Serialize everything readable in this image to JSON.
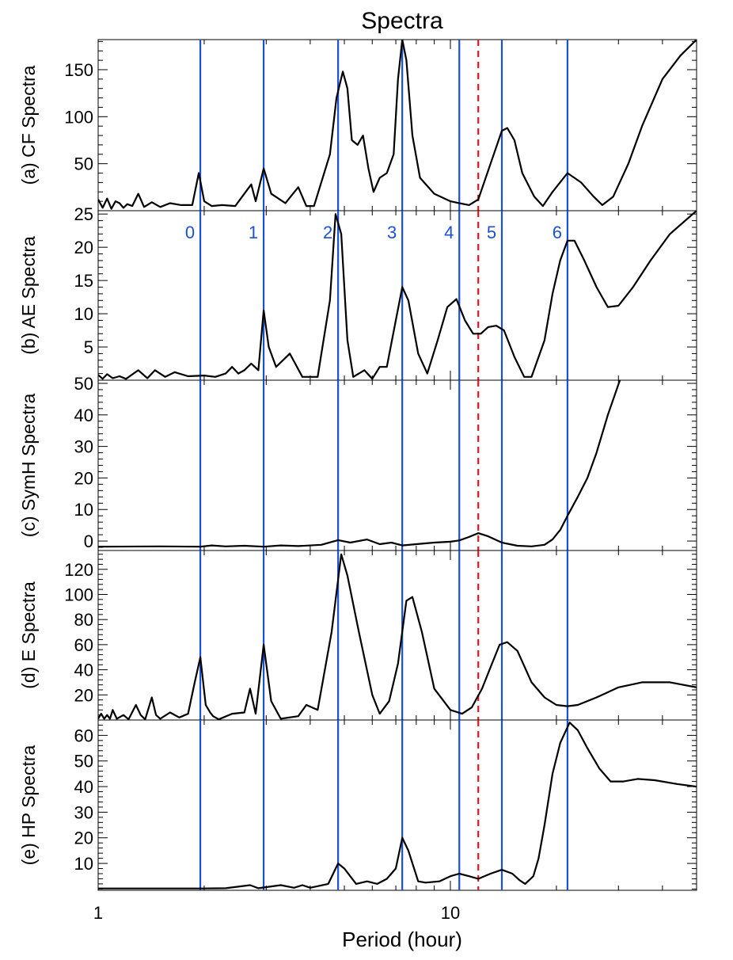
{
  "title": "Spectra",
  "xlabel": "Period (hour)",
  "vline_color": "#1a4fd8",
  "dashed_color": "#e8141e",
  "chart_data": {
    "type": "line",
    "x_scale": "log",
    "xlim": [
      1,
      50
    ],
    "x_ticks": [
      {
        "value": 1,
        "label": "1"
      },
      {
        "value": 10,
        "label": "10"
      }
    ],
    "vertical_lines": [
      {
        "period": 1.95,
        "label": "0"
      },
      {
        "period": 2.95,
        "label": "1"
      },
      {
        "period": 4.8,
        "label": "2"
      },
      {
        "period": 7.3,
        "label": "3"
      },
      {
        "period": 10.6,
        "label": "4"
      },
      {
        "period": 14.0,
        "label": "5"
      },
      {
        "period": 21.5,
        "label": "6"
      }
    ],
    "dashed_line": {
      "period": 12.0
    },
    "panels": [
      {
        "ylabel": "(a) CF Spectra",
        "ylim": [
          0,
          182
        ],
        "yticks": [
          50,
          100,
          150
        ],
        "points": [
          [
            1.0,
            12
          ],
          [
            1.03,
            3
          ],
          [
            1.06,
            13
          ],
          [
            1.09,
            2
          ],
          [
            1.12,
            10
          ],
          [
            1.15,
            8
          ],
          [
            1.18,
            3
          ],
          [
            1.21,
            7
          ],
          [
            1.25,
            5
          ],
          [
            1.3,
            18
          ],
          [
            1.35,
            4
          ],
          [
            1.42,
            9
          ],
          [
            1.5,
            4
          ],
          [
            1.6,
            8
          ],
          [
            1.72,
            6
          ],
          [
            1.85,
            6
          ],
          [
            1.93,
            40
          ],
          [
            2.0,
            10
          ],
          [
            2.1,
            5
          ],
          [
            2.25,
            6
          ],
          [
            2.45,
            5
          ],
          [
            2.72,
            28
          ],
          [
            2.8,
            10
          ],
          [
            2.95,
            45
          ],
          [
            3.1,
            18
          ],
          [
            3.4,
            8
          ],
          [
            3.7,
            25
          ],
          [
            3.9,
            5
          ],
          [
            4.1,
            5
          ],
          [
            4.55,
            60
          ],
          [
            4.75,
            120
          ],
          [
            4.95,
            148
          ],
          [
            5.1,
            130
          ],
          [
            5.25,
            75
          ],
          [
            5.45,
            70
          ],
          [
            5.65,
            80
          ],
          [
            5.85,
            45
          ],
          [
            6.05,
            20
          ],
          [
            6.3,
            35
          ],
          [
            6.6,
            40
          ],
          [
            6.9,
            60
          ],
          [
            7.1,
            140
          ],
          [
            7.3,
            182
          ],
          [
            7.5,
            160
          ],
          [
            7.8,
            80
          ],
          [
            8.2,
            35
          ],
          [
            9.0,
            18
          ],
          [
            10.0,
            10
          ],
          [
            10.6,
            8
          ],
          [
            11.3,
            6
          ],
          [
            12.0,
            12
          ],
          [
            13.0,
            50
          ],
          [
            14.0,
            85
          ],
          [
            14.5,
            88
          ],
          [
            15.2,
            75
          ],
          [
            16.0,
            40
          ],
          [
            17.3,
            15
          ],
          [
            18.3,
            5
          ],
          [
            19.5,
            20
          ],
          [
            21.5,
            40
          ],
          [
            23.5,
            30
          ],
          [
            25.5,
            15
          ],
          [
            27.0,
            6
          ],
          [
            29.0,
            15
          ],
          [
            32.0,
            50
          ],
          [
            35.0,
            90
          ],
          [
            40.0,
            140
          ],
          [
            45.0,
            165
          ],
          [
            50.0,
            182
          ]
        ]
      },
      {
        "ylabel": "(b) AE Spectra",
        "ylim": [
          0,
          25.5
        ],
        "yticks": [
          5,
          10,
          15,
          20,
          25
        ],
        "points": [
          [
            1.0,
            0.8
          ],
          [
            1.03,
            0.2
          ],
          [
            1.06,
            0.9
          ],
          [
            1.1,
            0.3
          ],
          [
            1.15,
            0.6
          ],
          [
            1.2,
            0.2
          ],
          [
            1.3,
            1.5
          ],
          [
            1.38,
            0.3
          ],
          [
            1.45,
            1.5
          ],
          [
            1.55,
            0.5
          ],
          [
            1.65,
            1.2
          ],
          [
            1.8,
            0.6
          ],
          [
            2.0,
            0.7
          ],
          [
            2.15,
            0.5
          ],
          [
            2.3,
            1.0
          ],
          [
            2.4,
            2.0
          ],
          [
            2.5,
            1.0
          ],
          [
            2.6,
            1.5
          ],
          [
            2.72,
            2.5
          ],
          [
            2.85,
            1.5
          ],
          [
            2.95,
            10.5
          ],
          [
            3.05,
            5
          ],
          [
            3.2,
            2.0
          ],
          [
            3.5,
            4.0
          ],
          [
            3.8,
            0.5
          ],
          [
            4.2,
            0.5
          ],
          [
            4.55,
            12
          ],
          [
            4.72,
            25
          ],
          [
            4.9,
            22
          ],
          [
            5.1,
            6
          ],
          [
            5.3,
            0.5
          ],
          [
            5.7,
            1.5
          ],
          [
            6.0,
            0.2
          ],
          [
            6.3,
            2.0
          ],
          [
            6.6,
            2.0
          ],
          [
            7.0,
            9
          ],
          [
            7.3,
            14
          ],
          [
            7.6,
            12
          ],
          [
            8.1,
            4
          ],
          [
            8.6,
            1.0
          ],
          [
            9.2,
            6
          ],
          [
            9.8,
            11
          ],
          [
            10.4,
            12.2
          ],
          [
            11.0,
            9
          ],
          [
            11.6,
            7
          ],
          [
            12.2,
            7
          ],
          [
            12.8,
            8
          ],
          [
            13.5,
            8.2
          ],
          [
            14.2,
            7.5
          ],
          [
            15.2,
            3.5
          ],
          [
            16.2,
            0.5
          ],
          [
            17.0,
            0.5
          ],
          [
            18.5,
            6
          ],
          [
            19.5,
            13
          ],
          [
            20.5,
            18
          ],
          [
            21.5,
            21
          ],
          [
            22.5,
            21
          ],
          [
            24.0,
            18
          ],
          [
            26.0,
            14
          ],
          [
            28.0,
            11
          ],
          [
            30.0,
            11.2
          ],
          [
            33.0,
            14
          ],
          [
            37.0,
            18
          ],
          [
            42.0,
            22
          ],
          [
            50.0,
            25.5
          ]
        ]
      },
      {
        "ylabel": "(c) SymH Spectra",
        "ylim": [
          -3,
          51
        ],
        "yticks": [
          0,
          10,
          20,
          30,
          40,
          50
        ],
        "points": [
          [
            1.0,
            -1.8
          ],
          [
            1.5,
            -1.7
          ],
          [
            1.95,
            -1.8
          ],
          [
            2.1,
            -1.4
          ],
          [
            2.3,
            -1.7
          ],
          [
            2.6,
            -1.5
          ],
          [
            2.95,
            -1.8
          ],
          [
            3.3,
            -1.4
          ],
          [
            3.7,
            -1.6
          ],
          [
            4.3,
            -1.2
          ],
          [
            4.8,
            0.3
          ],
          [
            5.2,
            -0.5
          ],
          [
            5.8,
            0.5
          ],
          [
            6.3,
            -1.0
          ],
          [
            6.8,
            -0.5
          ],
          [
            7.3,
            -1.4
          ],
          [
            8.0,
            -1.0
          ],
          [
            9.0,
            -0.5
          ],
          [
            10.0,
            -0.2
          ],
          [
            10.6,
            0.2
          ],
          [
            11.3,
            1.3
          ],
          [
            12.0,
            2.5
          ],
          [
            12.8,
            1.5
          ],
          [
            14.0,
            -0.5
          ],
          [
            15.5,
            -1.5
          ],
          [
            17.0,
            -1.7
          ],
          [
            18.5,
            -1.2
          ],
          [
            19.5,
            0.5
          ],
          [
            20.5,
            3.5
          ],
          [
            21.5,
            8
          ],
          [
            23.0,
            14
          ],
          [
            24.5,
            20
          ],
          [
            26.0,
            28
          ],
          [
            28.0,
            40
          ],
          [
            30.5,
            52
          ]
        ]
      },
      {
        "ylabel": "(d) E Spectra",
        "ylim": [
          0,
          135
        ],
        "yticks": [
          20,
          40,
          60,
          80,
          100,
          120
        ],
        "points": [
          [
            1.0,
            1
          ],
          [
            1.02,
            5
          ],
          [
            1.04,
            1
          ],
          [
            1.06,
            4
          ],
          [
            1.08,
            1
          ],
          [
            1.1,
            8
          ],
          [
            1.13,
            1
          ],
          [
            1.18,
            4
          ],
          [
            1.22,
            0.5
          ],
          [
            1.28,
            12
          ],
          [
            1.32,
            4
          ],
          [
            1.36,
            0.5
          ],
          [
            1.42,
            18
          ],
          [
            1.46,
            4
          ],
          [
            1.5,
            1
          ],
          [
            1.6,
            6
          ],
          [
            1.7,
            2
          ],
          [
            1.8,
            5
          ],
          [
            1.88,
            30
          ],
          [
            1.95,
            50
          ],
          [
            2.02,
            12
          ],
          [
            2.08,
            6
          ],
          [
            2.12,
            3
          ],
          [
            2.2,
            0.5
          ],
          [
            2.4,
            5
          ],
          [
            2.6,
            6
          ],
          [
            2.7,
            25
          ],
          [
            2.8,
            5
          ],
          [
            2.95,
            60
          ],
          [
            3.1,
            15
          ],
          [
            3.3,
            1
          ],
          [
            3.7,
            3
          ],
          [
            3.9,
            12
          ],
          [
            4.2,
            8
          ],
          [
            4.6,
            70
          ],
          [
            4.9,
            132
          ],
          [
            5.1,
            115
          ],
          [
            5.5,
            70
          ],
          [
            6.0,
            20
          ],
          [
            6.3,
            5
          ],
          [
            6.7,
            15
          ],
          [
            7.1,
            45
          ],
          [
            7.5,
            95
          ],
          [
            7.8,
            98
          ],
          [
            8.3,
            70
          ],
          [
            9.0,
            25
          ],
          [
            10.0,
            8
          ],
          [
            10.8,
            5
          ],
          [
            11.5,
            10
          ],
          [
            12.3,
            25
          ],
          [
            13.0,
            42
          ],
          [
            13.8,
            60
          ],
          [
            14.5,
            62
          ],
          [
            15.5,
            55
          ],
          [
            17.0,
            30
          ],
          [
            18.5,
            18
          ],
          [
            20.0,
            12
          ],
          [
            21.5,
            11
          ],
          [
            23.0,
            12
          ],
          [
            26.0,
            18
          ],
          [
            30.0,
            26
          ],
          [
            35.0,
            30
          ],
          [
            42.0,
            30
          ],
          [
            50.0,
            26
          ]
        ]
      },
      {
        "ylabel": "(e) HP Spectra",
        "ylim": [
          -0.5,
          66
        ],
        "yticks": [
          10,
          20,
          30,
          40,
          50,
          60
        ],
        "points": [
          [
            1.0,
            0.2
          ],
          [
            1.5,
            0.2
          ],
          [
            1.95,
            0.2
          ],
          [
            2.3,
            0.3
          ],
          [
            2.7,
            1.5
          ],
          [
            2.85,
            0.3
          ],
          [
            3.3,
            1.5
          ],
          [
            3.6,
            0.5
          ],
          [
            3.8,
            1.5
          ],
          [
            4.0,
            0.5
          ],
          [
            4.5,
            2
          ],
          [
            4.8,
            10
          ],
          [
            5.0,
            8
          ],
          [
            5.4,
            2
          ],
          [
            5.8,
            3
          ],
          [
            6.2,
            2
          ],
          [
            6.6,
            4
          ],
          [
            7.0,
            8
          ],
          [
            7.3,
            20
          ],
          [
            7.6,
            15
          ],
          [
            8.1,
            3
          ],
          [
            8.5,
            2.5
          ],
          [
            9.3,
            3
          ],
          [
            10.0,
            5
          ],
          [
            10.6,
            6
          ],
          [
            11.3,
            5
          ],
          [
            12.0,
            4
          ],
          [
            13.0,
            6
          ],
          [
            14.0,
            7.5
          ],
          [
            15.0,
            6
          ],
          [
            15.7,
            3.5
          ],
          [
            16.3,
            2
          ],
          [
            17.2,
            5
          ],
          [
            17.8,
            12
          ],
          [
            18.5,
            25
          ],
          [
            19.5,
            45
          ],
          [
            20.5,
            57
          ],
          [
            21.8,
            65
          ],
          [
            23.0,
            62
          ],
          [
            24.5,
            55
          ],
          [
            26.5,
            47
          ],
          [
            28.5,
            42
          ],
          [
            31.0,
            42
          ],
          [
            34.0,
            43
          ],
          [
            38.0,
            42.5
          ],
          [
            44.0,
            41
          ],
          [
            50.0,
            40
          ]
        ]
      }
    ]
  }
}
